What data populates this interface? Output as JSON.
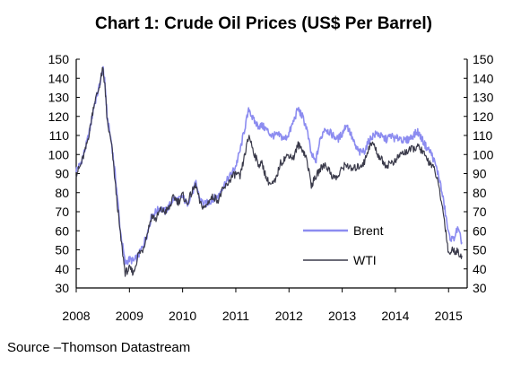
{
  "chart_data": {
    "type": "line",
    "title": "Chart 1: Crude Oil Prices (US$ Per Barrel)",
    "source": "Source –Thomson Datastream",
    "xlabel": "",
    "ylabel": "",
    "x_ticks": [
      "2008",
      "2009",
      "2010",
      "2011",
      "2012",
      "2013",
      "2014",
      "2015"
    ],
    "xlim": [
      2008.0,
      2015.35
    ],
    "ylim": [
      30,
      150
    ],
    "y_ticks": [
      30,
      40,
      50,
      60,
      70,
      80,
      90,
      100,
      110,
      120,
      130,
      140,
      150
    ],
    "y_ticks_right": [
      30,
      40,
      50,
      60,
      70,
      80,
      90,
      100,
      110,
      120,
      130,
      140,
      150
    ],
    "grid": false,
    "legend_position": "center-right",
    "colors": {
      "Brent": "#8c8cf0",
      "WTI": "#3a3a4a"
    },
    "series": [
      {
        "name": "Brent",
        "x": [
          2008.0,
          2008.08,
          2008.17,
          2008.25,
          2008.33,
          2008.42,
          2008.5,
          2008.54,
          2008.58,
          2008.67,
          2008.75,
          2008.83,
          2008.92,
          2009.0,
          2009.08,
          2009.17,
          2009.25,
          2009.33,
          2009.42,
          2009.5,
          2009.58,
          2009.67,
          2009.75,
          2009.83,
          2009.92,
          2010.0,
          2010.08,
          2010.17,
          2010.25,
          2010.33,
          2010.42,
          2010.5,
          2010.58,
          2010.67,
          2010.75,
          2010.83,
          2010.92,
          2011.0,
          2011.08,
          2011.17,
          2011.25,
          2011.33,
          2011.42,
          2011.5,
          2011.58,
          2011.67,
          2011.75,
          2011.83,
          2011.92,
          2012.0,
          2012.08,
          2012.17,
          2012.25,
          2012.33,
          2012.42,
          2012.5,
          2012.58,
          2012.67,
          2012.75,
          2012.83,
          2012.92,
          2013.0,
          2013.08,
          2013.17,
          2013.25,
          2013.33,
          2013.42,
          2013.5,
          2013.58,
          2013.67,
          2013.75,
          2013.83,
          2013.92,
          2014.0,
          2014.08,
          2014.17,
          2014.25,
          2014.33,
          2014.42,
          2014.5,
          2014.58,
          2014.67,
          2014.75,
          2014.83,
          2014.92,
          2015.0,
          2015.08,
          2015.17,
          2015.25
        ],
        "values": [
          92,
          95,
          103,
          112,
          125,
          134,
          145,
          138,
          120,
          105,
          85,
          60,
          43,
          45,
          44,
          47,
          52,
          58,
          68,
          70,
          72,
          70,
          73,
          77,
          76,
          78,
          74,
          79,
          85,
          76,
          74,
          75,
          77,
          78,
          83,
          86,
          90,
          94,
          102,
          114,
          124,
          118,
          115,
          115,
          113,
          110,
          110,
          110,
          108,
          111,
          117,
          124,
          120,
          114,
          100,
          96,
          107,
          114,
          112,
          110,
          108,
          111,
          116,
          110,
          104,
          101,
          102,
          107,
          110,
          111,
          109,
          108,
          110,
          108,
          109,
          107,
          108,
          110,
          112,
          108,
          104,
          101,
          95,
          87,
          73,
          58,
          55,
          61,
          54
        ]
      },
      {
        "name": "WTI",
        "x": [
          2008.0,
          2008.08,
          2008.17,
          2008.25,
          2008.33,
          2008.42,
          2008.5,
          2008.54,
          2008.58,
          2008.67,
          2008.75,
          2008.83,
          2008.92,
          2009.0,
          2009.08,
          2009.17,
          2009.25,
          2009.33,
          2009.42,
          2009.5,
          2009.58,
          2009.67,
          2009.75,
          2009.83,
          2009.92,
          2010.0,
          2010.08,
          2010.17,
          2010.25,
          2010.33,
          2010.42,
          2010.5,
          2010.58,
          2010.67,
          2010.75,
          2010.83,
          2010.92,
          2011.0,
          2011.08,
          2011.17,
          2011.25,
          2011.33,
          2011.42,
          2011.5,
          2011.58,
          2011.67,
          2011.75,
          2011.83,
          2011.92,
          2012.0,
          2012.08,
          2012.17,
          2012.25,
          2012.33,
          2012.42,
          2012.5,
          2012.58,
          2012.67,
          2012.75,
          2012.83,
          2012.92,
          2013.0,
          2013.08,
          2013.17,
          2013.25,
          2013.33,
          2013.42,
          2013.5,
          2013.58,
          2013.67,
          2013.75,
          2013.83,
          2013.92,
          2014.0,
          2014.08,
          2014.17,
          2014.25,
          2014.33,
          2014.42,
          2014.5,
          2014.58,
          2014.67,
          2014.75,
          2014.83,
          2014.92,
          2015.0,
          2015.08,
          2015.17,
          2015.25
        ],
        "values": [
          90,
          94,
          102,
          112,
          126,
          134,
          145,
          136,
          118,
          104,
          80,
          58,
          38,
          40,
          38,
          48,
          50,
          58,
          68,
          66,
          71,
          70,
          72,
          78,
          75,
          79,
          74,
          80,
          84,
          74,
          72,
          76,
          78,
          76,
          81,
          84,
          88,
          90,
          88,
          100,
          110,
          102,
          95,
          95,
          87,
          84,
          86,
          95,
          98,
          100,
          98,
          105,
          103,
          98,
          84,
          88,
          92,
          95,
          92,
          88,
          88,
          93,
          95,
          92,
          93,
          94,
          96,
          104,
          106,
          100,
          97,
          94,
          96,
          96,
          100,
          101,
          102,
          103,
          104,
          102,
          98,
          95,
          91,
          81,
          66,
          48,
          50,
          49,
          47
        ]
      }
    ]
  }
}
